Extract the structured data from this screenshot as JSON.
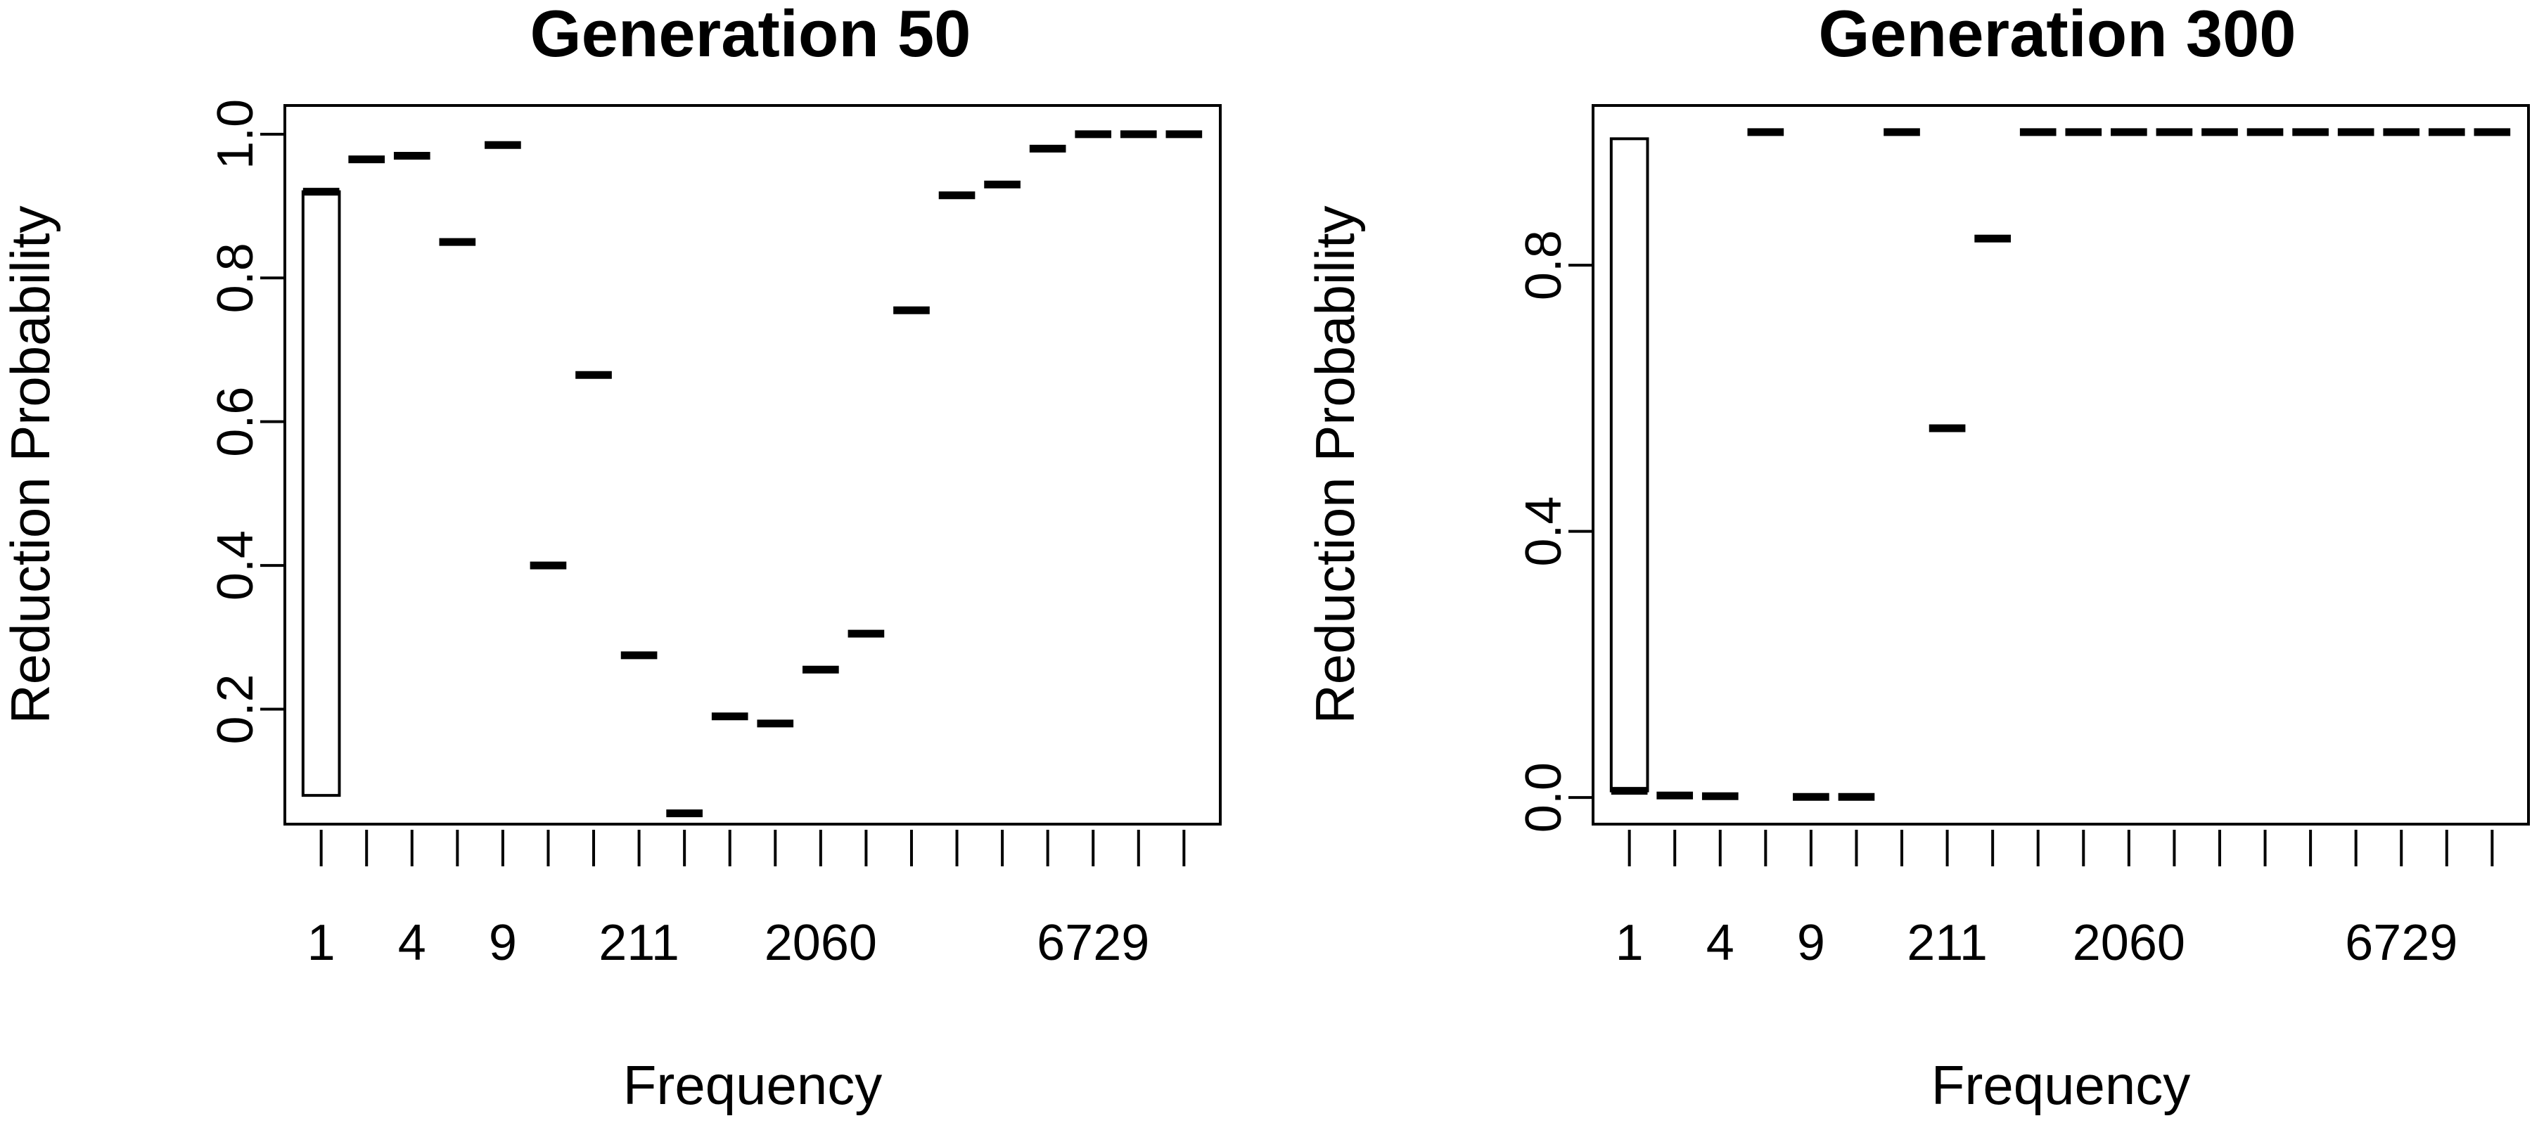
{
  "chart_data": [
    {
      "type": "box",
      "title": "Generation 50",
      "xlabel": "Frequency",
      "ylabel": "Reduction Probability",
      "x_tick_labels": [
        "1",
        "4",
        "9",
        "211",
        "2060",
        "6729"
      ],
      "y_ticks": [
        "0.2",
        "0.4",
        "0.6",
        "0.8",
        "1.0"
      ],
      "ylim": [
        0.04,
        1.04
      ],
      "box": {
        "position": 1,
        "lower": 0.08,
        "upper": 0.92,
        "median": 0.92
      },
      "points": [
        {
          "position": 2,
          "value": 0.965
        },
        {
          "position": 3,
          "value": 0.97
        },
        {
          "position": 4,
          "value": 0.85
        },
        {
          "position": 5,
          "value": 0.985
        },
        {
          "position": 6,
          "value": 0.4
        },
        {
          "position": 7,
          "value": 0.665
        },
        {
          "position": 8,
          "value": 0.275
        },
        {
          "position": 9,
          "value": 0.055
        },
        {
          "position": 10,
          "value": 0.19
        },
        {
          "position": 11,
          "value": 0.18
        },
        {
          "position": 12,
          "value": 0.255
        },
        {
          "position": 13,
          "value": 0.305
        },
        {
          "position": 14,
          "value": 0.755
        },
        {
          "position": 15,
          "value": 0.915
        },
        {
          "position": 16,
          "value": 0.93
        },
        {
          "position": 17,
          "value": 0.98
        },
        {
          "position": 18,
          "value": 1.0
        },
        {
          "position": 19,
          "value": 1.0
        },
        {
          "position": 20,
          "value": 1.0
        }
      ],
      "grid": false
    },
    {
      "type": "box",
      "title": "Generation 300",
      "xlabel": "Frequency",
      "ylabel": "Reduction Probability",
      "x_tick_labels": [
        "1",
        "4",
        "9",
        "211",
        "2060",
        "6729"
      ],
      "y_ticks": [
        "0.0",
        "0.4",
        "0.8"
      ],
      "ylim": [
        -0.04,
        1.04
      ],
      "box": {
        "position": 1,
        "lower": 0.01,
        "upper": 0.99,
        "median": 0.01
      },
      "points": [
        {
          "position": 2,
          "value": 0.003
        },
        {
          "position": 3,
          "value": 0.002
        },
        {
          "position": 4,
          "value": 1.0
        },
        {
          "position": 5,
          "value": 0.001
        },
        {
          "position": 6,
          "value": 0.001
        },
        {
          "position": 7,
          "value": 1.0
        },
        {
          "position": 8,
          "value": 0.555
        },
        {
          "position": 9,
          "value": 0.84
        },
        {
          "position": 10,
          "value": 1.0
        },
        {
          "position": 11,
          "value": 1.0
        },
        {
          "position": 12,
          "value": 1.0
        },
        {
          "position": 13,
          "value": 1.0
        },
        {
          "position": 14,
          "value": 1.0
        },
        {
          "position": 15,
          "value": 1.0
        },
        {
          "position": 16,
          "value": 1.0
        },
        {
          "position": 17,
          "value": 1.0
        },
        {
          "position": 18,
          "value": 1.0
        },
        {
          "position": 19,
          "value": 1.0
        },
        {
          "position": 20,
          "value": 1.0
        }
      ],
      "grid": false
    }
  ]
}
